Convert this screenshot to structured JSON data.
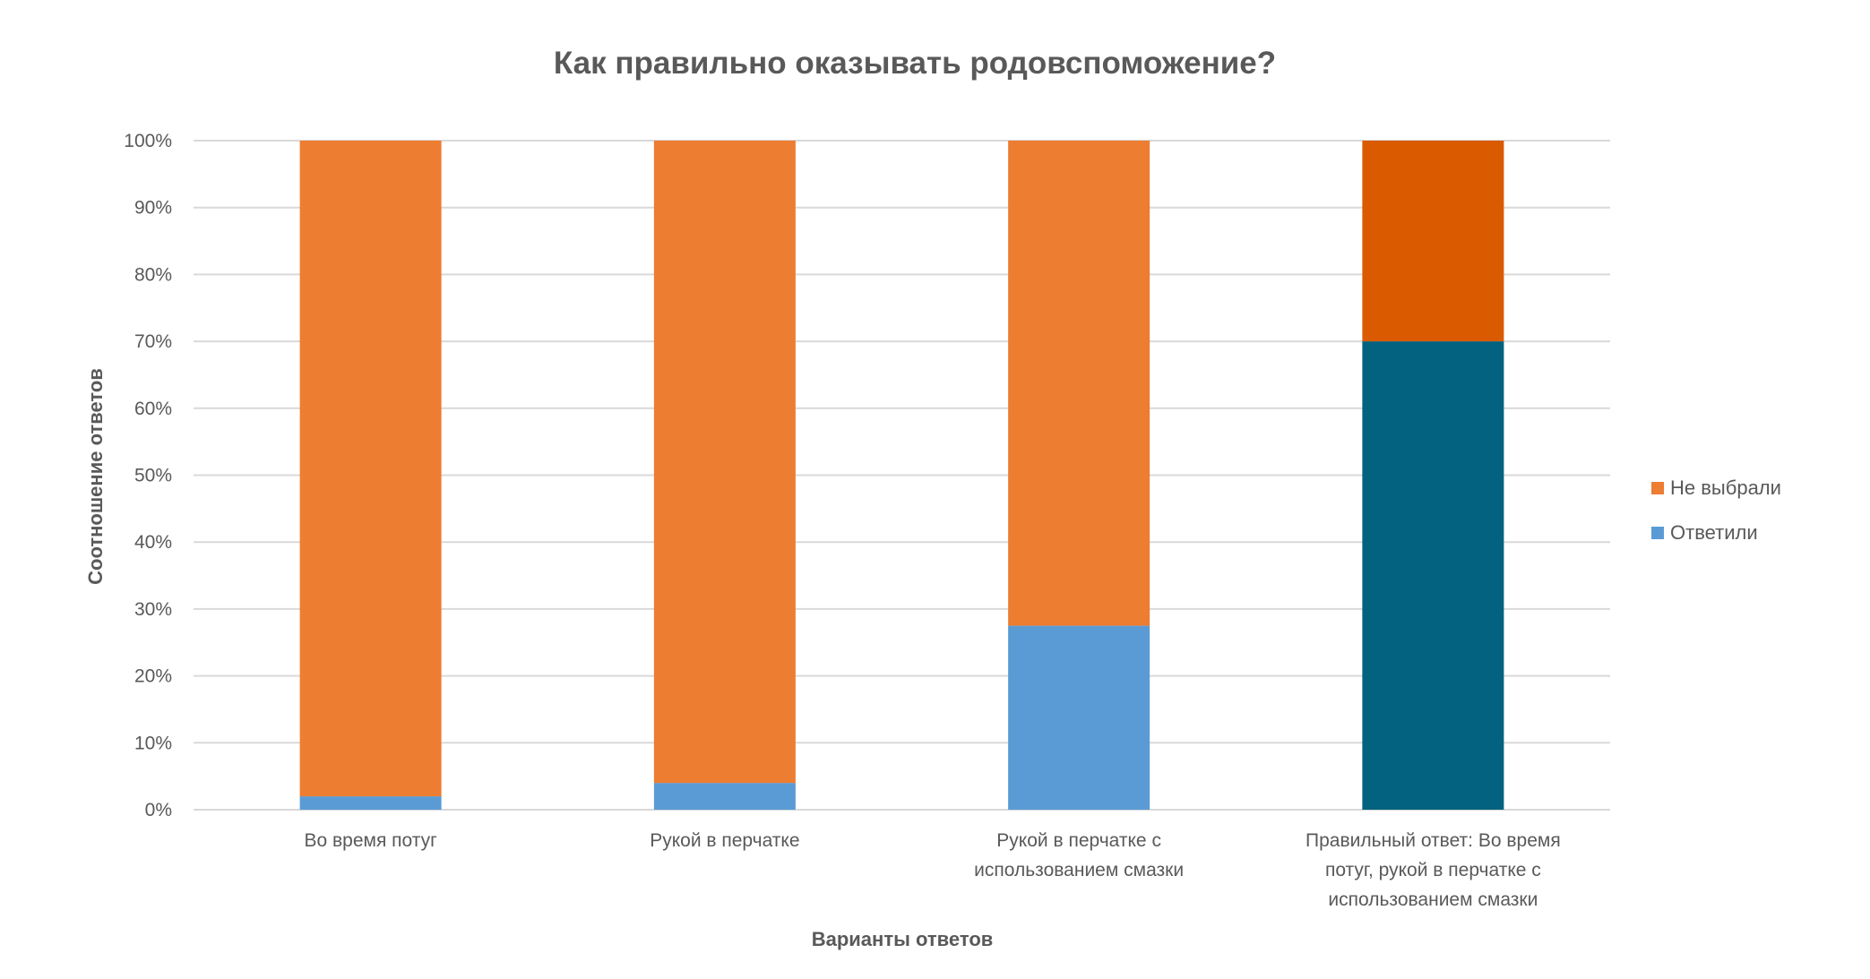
{
  "chart_data": {
    "type": "bar",
    "stacked": true,
    "title": "Как правильно оказывать родовспоможение?",
    "xlabel": "Варианты ответов",
    "ylabel": "Соотношение ответов",
    "ylim": [
      0,
      100
    ],
    "yticks": [
      "0%",
      "10%",
      "20%",
      "30%",
      "40%",
      "50%",
      "60%",
      "70%",
      "80%",
      "90%",
      "100%"
    ],
    "grid": true,
    "legend_position": "right",
    "categories": [
      [
        "Во время потуг"
      ],
      [
        "Рукой в перчатке"
      ],
      [
        "Рукой в перчатке с",
        "использованием смазки"
      ],
      [
        "Правильный ответ: Во время",
        "потуг, рукой в перчатке с",
        "использованием смазки"
      ]
    ],
    "series": [
      {
        "name": "Ответили",
        "values": [
          2,
          4,
          27.5,
          70
        ],
        "color": "#5B9BD5",
        "highlight_color": "#03627F"
      },
      {
        "name": "Не выбрали",
        "values": [
          98,
          96,
          72.5,
          30
        ],
        "color": "#ED7D31",
        "highlight_color": "#DA5A00"
      }
    ],
    "highlight_index": 3,
    "legend": [
      "Не выбрали",
      "Ответили"
    ]
  }
}
